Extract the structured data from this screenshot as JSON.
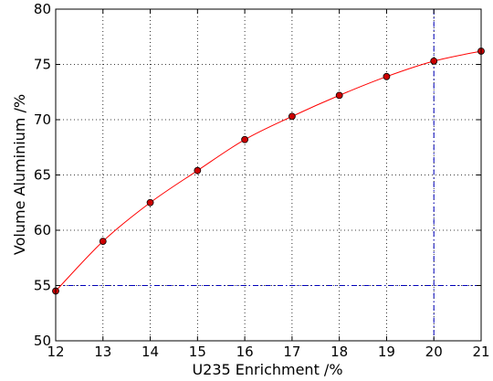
{
  "chart_data": {
    "type": "line",
    "title": "",
    "xlabel": "U235 Enrichment /%",
    "ylabel": "Volume Aluminium /%",
    "xlim": [
      12,
      21
    ],
    "ylim": [
      50,
      80
    ],
    "xticks": [
      "12",
      "13",
      "14",
      "15",
      "16",
      "17",
      "18",
      "19",
      "20",
      "21"
    ],
    "yticks": [
      "50",
      "55",
      "60",
      "65",
      "70",
      "75",
      "80"
    ],
    "grid": true,
    "series": [
      {
        "x": [
          12,
          13,
          14,
          15,
          16,
          17,
          18,
          19,
          20,
          21
        ],
        "y": [
          54.5,
          59.0,
          62.5,
          65.4,
          68.2,
          70.3,
          72.2,
          73.9,
          75.3,
          76.2
        ],
        "line_color": "#ff0000",
        "marker_color": "#cc0000",
        "marker_edge": "#000000"
      }
    ],
    "reference_lines": [
      {
        "orientation": "horizontal",
        "value": 55,
        "color": "#0000bb",
        "style": "dash-dot"
      },
      {
        "orientation": "vertical",
        "value": 20,
        "color": "#0000bb",
        "style": "dash-dot"
      }
    ]
  }
}
